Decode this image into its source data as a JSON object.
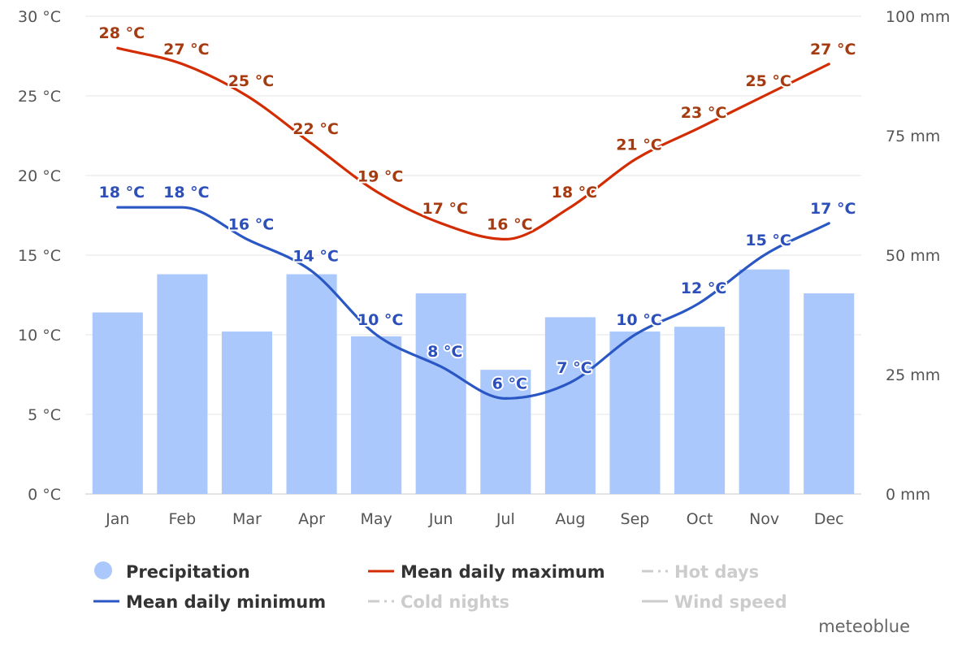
{
  "chart_data": {
    "type": "bar",
    "categories": [
      "Jan",
      "Feb",
      "Mar",
      "Apr",
      "May",
      "Jun",
      "Jul",
      "Aug",
      "Sep",
      "Oct",
      "Nov",
      "Dec"
    ],
    "series": [
      {
        "name": "Precipitation",
        "kind": "bar",
        "axis": "right",
        "unit": "mm",
        "color": "#aac8fc",
        "values": [
          38,
          46,
          34,
          46,
          33,
          42,
          26,
          37,
          34,
          35,
          47,
          42
        ]
      },
      {
        "name": "Mean daily maximum",
        "kind": "line",
        "axis": "left",
        "unit": "°C",
        "color": "#d22c00",
        "label_color": "#a53b10",
        "values": [
          28,
          27,
          25,
          22,
          19,
          17,
          16,
          18,
          21,
          23,
          25,
          27
        ],
        "labels": [
          "28 °C",
          "27 °C",
          "25 °C",
          "22 °C",
          "19 °C",
          "17 °C",
          "16 °C",
          "18 °C",
          "21 °C",
          "23 °C",
          "25 °C",
          "27 °C"
        ]
      },
      {
        "name": "Mean daily minimum",
        "kind": "line",
        "axis": "left",
        "unit": "°C",
        "color": "#2a57c4",
        "label_color": "#2c4fba",
        "values": [
          18,
          18,
          16,
          14,
          10,
          8,
          6,
          7,
          10,
          12,
          15,
          17
        ],
        "labels": [
          "18 °C",
          "18 °C",
          "16 °C",
          "14 °C",
          "10 °C",
          "8 °C",
          "6 °C",
          "7 °C",
          "10 °C",
          "12 °C",
          "15 °C",
          "17 °C"
        ]
      }
    ],
    "left_axis": {
      "ylim": [
        0,
        30
      ],
      "ticks": [
        0,
        5,
        10,
        15,
        20,
        25,
        30
      ],
      "labels": [
        "0 °C",
        "5 °C",
        "10 °C",
        "15 °C",
        "20 °C",
        "25 °C",
        "30 °C"
      ]
    },
    "right_axis": {
      "ylim": [
        0,
        100
      ],
      "ticks": [
        0,
        25,
        50,
        75,
        100
      ],
      "labels": [
        "0 mm",
        "25 mm",
        "50 mm",
        "75 mm",
        "100 mm"
      ]
    },
    "grid": true,
    "legend_position": "bottom",
    "legend": [
      {
        "label": "Precipitation",
        "style": "dot",
        "color": "#aac8fc",
        "active": true
      },
      {
        "label": "Mean daily maximum",
        "style": "line",
        "color": "#d22c00",
        "active": true
      },
      {
        "label": "Hot days",
        "style": "dashdot",
        "color": "#cccccc",
        "active": false
      },
      {
        "label": "Mean daily minimum",
        "style": "line",
        "color": "#2a57c4",
        "active": true
      },
      {
        "label": "Cold nights",
        "style": "dashdot",
        "color": "#cccccc",
        "active": false
      },
      {
        "label": "Wind speed",
        "style": "line",
        "color": "#cccccc",
        "active": false
      }
    ]
  },
  "credit": "meteoblue"
}
